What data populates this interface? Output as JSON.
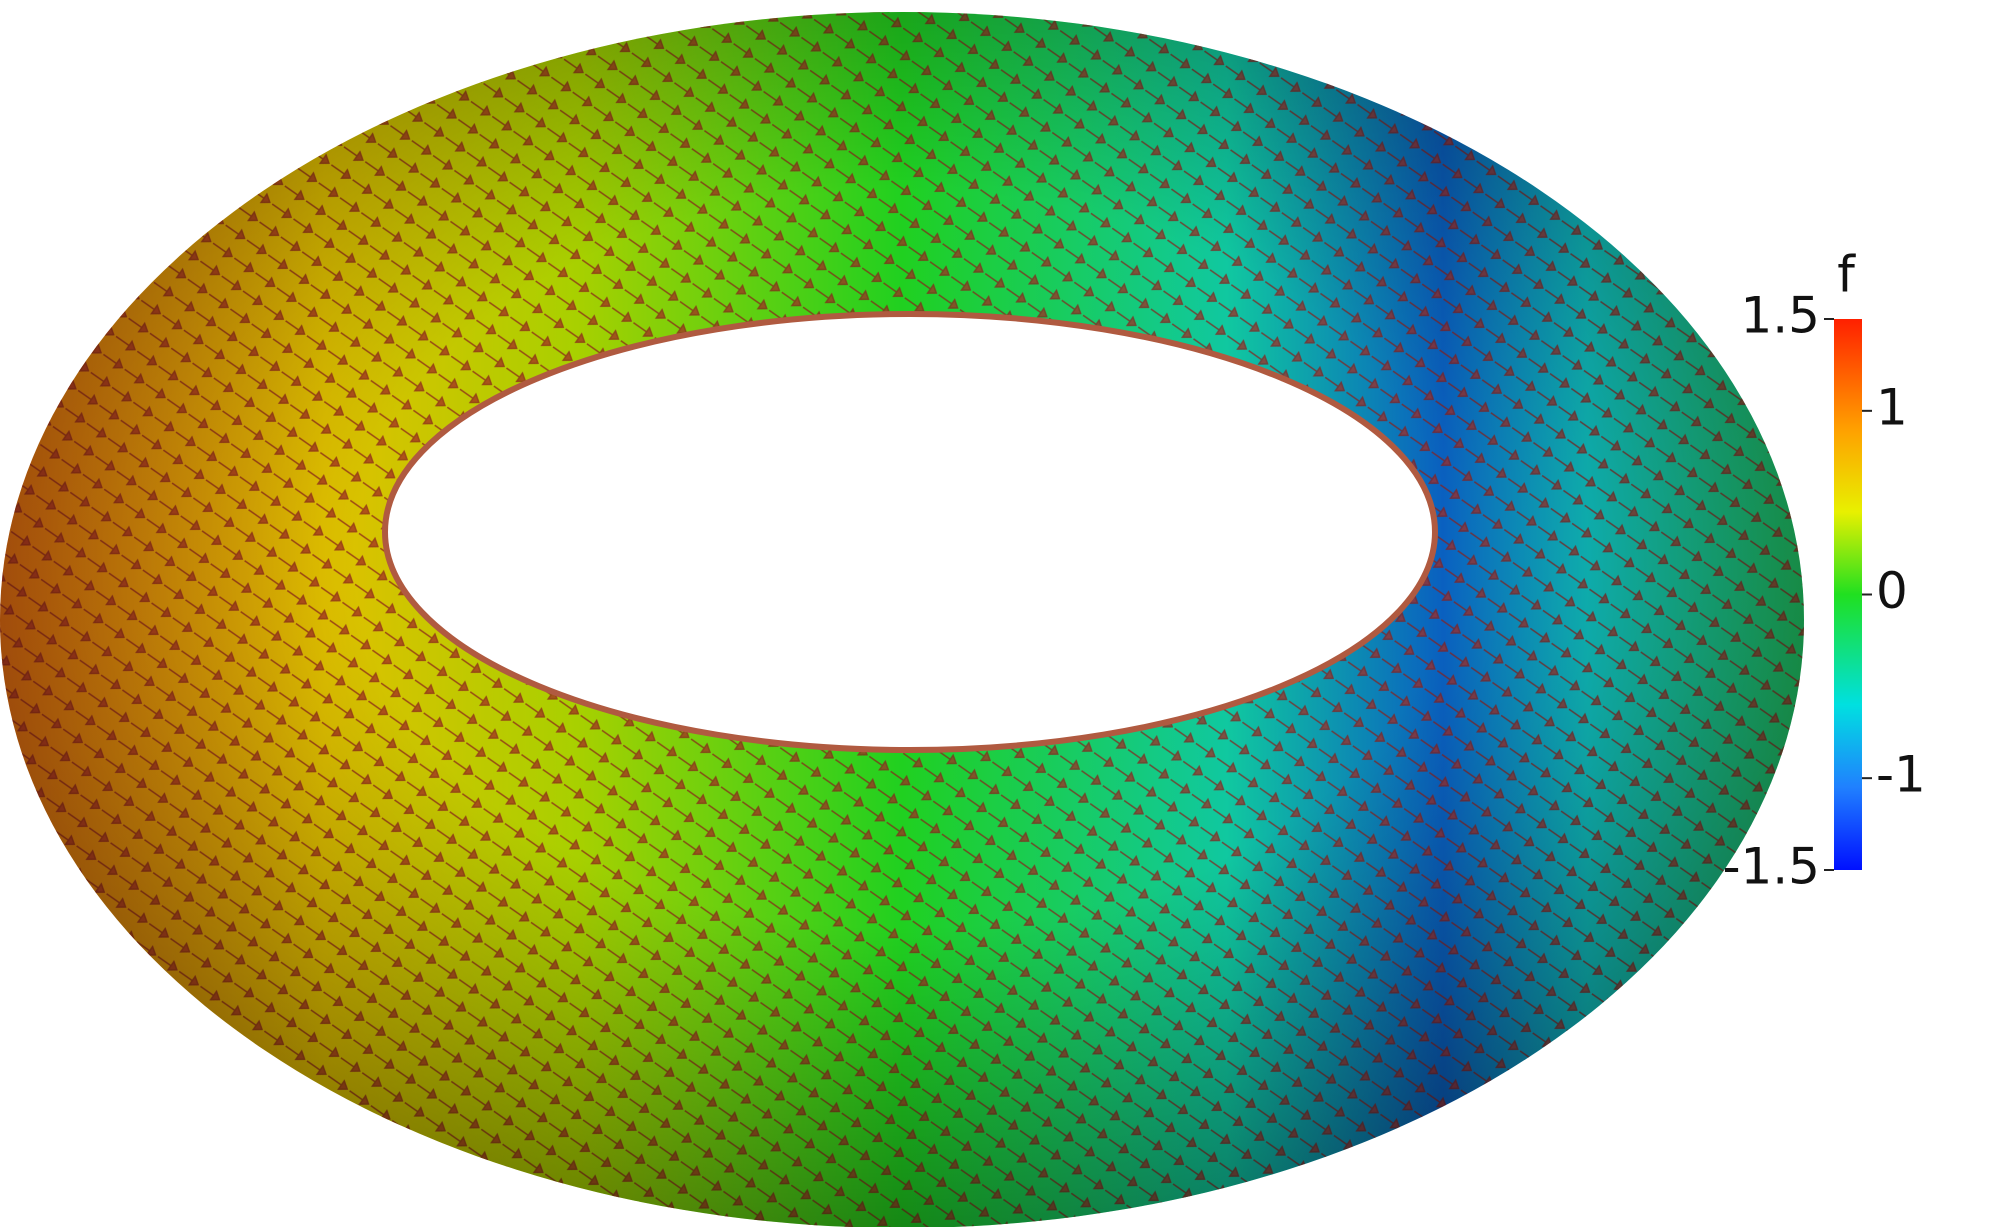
{
  "colorbar": {
    "title": "f",
    "range": [
      -1.5,
      1.5
    ],
    "ticks": [
      -1.5,
      -1,
      0,
      1,
      1.5
    ]
  }
}
